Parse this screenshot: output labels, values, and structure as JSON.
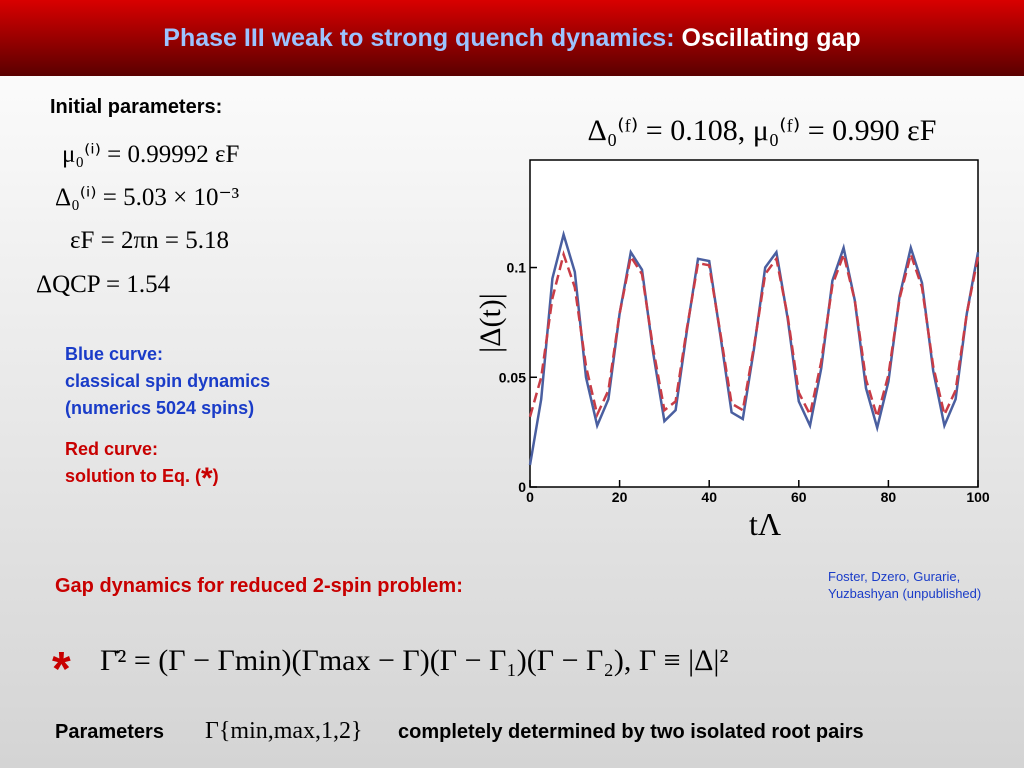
{
  "header": {
    "title": "Phase III weak to strong quench dynamics:",
    "highlight": "Oscillating gap"
  },
  "initial": {
    "heading": "Initial parameters:",
    "lines": [
      "μ₀⁽ⁱ⁾ = 0.99992 εF",
      "Δ₀⁽ⁱ⁾ = 5.03 × 10⁻³",
      "εF = 2πn = 5.18",
      "ΔQCP = 1.54"
    ]
  },
  "blue_note": [
    "Blue curve:",
    "classical spin dynamics",
    "(numerics 5024 spins)"
  ],
  "red_note": {
    "heading": "Red curve:",
    "text": "solution to Eq. (",
    "star": "*",
    "close": ")"
  },
  "gap_heading": "Gap dynamics for reduced 2-spin problem:",
  "citation": [
    "Foster, Dzero, Gurarie,",
    "Yuzbashyan (unpublished)"
  ],
  "equation": {
    "star": "*",
    "text": "Γ̇² = (Γ − Γmin)(Γmax − Γ)(Γ − Γ₁)(Γ − Γ₂),  Γ ≡ |Δ|²"
  },
  "footer": {
    "lead": "Parameters",
    "symbol": "Γ{min,max,1,2}",
    "text": "completely determined by two isolated root pairs"
  },
  "chart_data": {
    "type": "line",
    "title": "Δ₀⁽ᶠ⁾ = 0.108,  μ₀⁽ᶠ⁾ = 0.990 εF",
    "x_label": "tΛ",
    "y_label": "|Δ(t)|",
    "x": [
      0,
      2.5,
      5,
      7.5,
      10,
      12.5,
      15,
      17.5,
      20,
      22.5,
      25,
      27.5,
      30,
      32.5,
      35,
      37.5,
      40,
      42.5,
      45,
      47.5,
      50,
      52.5,
      55,
      57.5,
      60,
      62.5,
      65,
      67.5,
      70,
      72.5,
      75,
      77.5,
      80,
      82.5,
      85,
      87.5,
      90,
      92.5,
      95,
      97.5,
      100
    ],
    "series": [
      {
        "color": "#4a5fa0",
        "dash": false,
        "values": [
          0.01,
          0.04,
          0.095,
          0.115,
          0.098,
          0.05,
          0.028,
          0.04,
          0.079,
          0.107,
          0.099,
          0.061,
          0.03,
          0.035,
          0.071,
          0.104,
          0.103,
          0.069,
          0.034,
          0.031,
          0.063,
          0.1,
          0.107,
          0.077,
          0.039,
          0.028,
          0.054,
          0.094,
          0.109,
          0.085,
          0.045,
          0.027,
          0.048,
          0.087,
          0.109,
          0.093,
          0.053,
          0.028,
          0.04,
          0.079,
          0.107
        ]
      },
      {
        "color": "#c83c46",
        "dash": true,
        "values": [
          0.032,
          0.05,
          0.086,
          0.106,
          0.091,
          0.055,
          0.033,
          0.044,
          0.079,
          0.105,
          0.097,
          0.063,
          0.035,
          0.039,
          0.072,
          0.102,
          0.101,
          0.07,
          0.038,
          0.035,
          0.064,
          0.097,
          0.104,
          0.078,
          0.043,
          0.033,
          0.057,
          0.092,
          0.106,
          0.085,
          0.049,
          0.032,
          0.051,
          0.086,
          0.106,
          0.091,
          0.055,
          0.033,
          0.044,
          0.079,
          0.105
        ]
      }
    ],
    "xlim": [
      0,
      100
    ],
    "ylim": [
      0,
      0.149
    ],
    "xticks": [
      0,
      20,
      40,
      60,
      80,
      100
    ],
    "yticks": [
      0,
      0.05,
      0.1
    ]
  }
}
